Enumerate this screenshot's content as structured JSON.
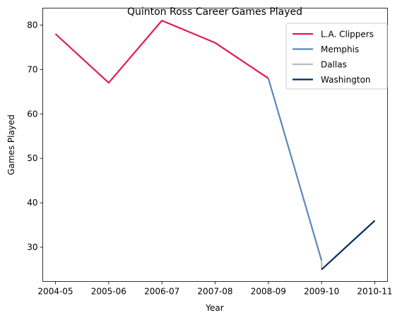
{
  "chart_data": {
    "type": "line",
    "title": "Quinton Ross Career Games Played",
    "xlabel": "Year",
    "ylabel": "Games Played",
    "categories": [
      "2004-05",
      "2005-06",
      "2006-07",
      "2007-08",
      "2008-09",
      "2009-10",
      "2010-11"
    ],
    "ylim": [
      22.3,
      83.8
    ],
    "yticks": [
      30,
      40,
      50,
      60,
      70,
      80
    ],
    "grid": false,
    "legend_position": "top-right",
    "series": [
      {
        "name": "L.A. Clippers",
        "color": "#e31c4e",
        "points": [
          [
            "2004-05",
            78
          ],
          [
            "2005-06",
            67
          ],
          [
            "2006-07",
            81
          ],
          [
            "2007-08",
            76
          ],
          [
            "2008-09",
            68
          ]
        ]
      },
      {
        "name": "Memphis",
        "color": "#5d87b8",
        "points": [
          [
            "2008-09",
            68
          ],
          [
            "2009-10",
            27
          ]
        ]
      },
      {
        "name": "Dallas",
        "color": "#bbbbbb",
        "points": [
          [
            "2009-10",
            27
          ],
          [
            "2009-10",
            25
          ]
        ]
      },
      {
        "name": "Washington",
        "color": "#002b5c",
        "points": [
          [
            "2009-10",
            25
          ],
          [
            "2010-11",
            36
          ]
        ]
      }
    ]
  }
}
